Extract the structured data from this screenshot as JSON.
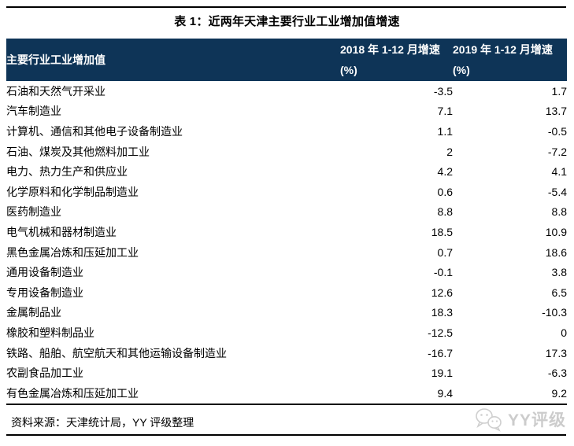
{
  "title": "表 1：近两年天津主要行业工业增加值增速",
  "table": {
    "columns": [
      "主要行业工业增加值",
      "2018 年 1-12 月增速(%)",
      "2019 年 1-12 月增速(%)"
    ],
    "rows": [
      {
        "industry": "石油和天然气开采业",
        "y2018": "-3.5",
        "y2019": "1.7"
      },
      {
        "industry": "汽车制造业",
        "y2018": "7.1",
        "y2019": "13.7"
      },
      {
        "industry": "计算机、通信和其他电子设备制造业",
        "y2018": "1.1",
        "y2019": "-0.5"
      },
      {
        "industry": "石油、煤炭及其他燃料加工业",
        "y2018": "2",
        "y2019": "-7.2"
      },
      {
        "industry": "电力、热力生产和供应业",
        "y2018": "4.2",
        "y2019": "4.1"
      },
      {
        "industry": "化学原料和化学制品制造业",
        "y2018": "0.6",
        "y2019": "-5.4"
      },
      {
        "industry": "医药制造业",
        "y2018": "8.8",
        "y2019": "8.8"
      },
      {
        "industry": "电气机械和器材制造业",
        "y2018": "18.5",
        "y2019": "10.9"
      },
      {
        "industry": "黑色金属冶炼和压延加工业",
        "y2018": "0.7",
        "y2019": "18.6"
      },
      {
        "industry": "通用设备制造业",
        "y2018": "-0.1",
        "y2019": "3.8"
      },
      {
        "industry": "专用设备制造业",
        "y2018": "12.6",
        "y2019": "6.5"
      },
      {
        "industry": "金属制品业",
        "y2018": "18.3",
        "y2019": "-10.3"
      },
      {
        "industry": "橡胶和塑料制品业",
        "y2018": "-12.5",
        "y2019": "0"
      },
      {
        "industry": "铁路、船舶、航空航天和其他运输设备制造业",
        "y2018": "-16.7",
        "y2019": "17.3"
      },
      {
        "industry": "农副食品加工业",
        "y2018": "19.1",
        "y2019": "-6.3"
      },
      {
        "industry": "有色金属冶炼和压延加工业",
        "y2018": "9.4",
        "y2019": "9.2"
      }
    ]
  },
  "chart_data": {
    "type": "table",
    "title": "表 1：近两年天津主要行业工业增加值增速",
    "categories": [
      "石油和天然气开采业",
      "汽车制造业",
      "计算机、通信和其他电子设备制造业",
      "石油、煤炭及其他燃料加工业",
      "电力、热力生产和供应业",
      "化学原料和化学制品制造业",
      "医药制造业",
      "电气机械和器材制造业",
      "黑色金属冶炼和压延加工业",
      "通用设备制造业",
      "专用设备制造业",
      "金属制品业",
      "橡胶和塑料制品业",
      "铁路、船舶、航空航天和其他运输设备制造业",
      "农副食品加工业",
      "有色金属冶炼和压延加工业"
    ],
    "series": [
      {
        "name": "2018 年 1-12 月增速(%)",
        "values": [
          -3.5,
          7.1,
          1.1,
          2,
          4.2,
          0.6,
          8.8,
          18.5,
          0.7,
          -0.1,
          12.6,
          18.3,
          -12.5,
          -16.7,
          19.1,
          9.4
        ]
      },
      {
        "name": "2019 年 1-12 月增速(%)",
        "values": [
          1.7,
          13.7,
          -0.5,
          -7.2,
          4.1,
          -5.4,
          8.8,
          10.9,
          18.6,
          3.8,
          6.5,
          -10.3,
          0,
          17.3,
          -6.3,
          9.2
        ]
      }
    ]
  },
  "footer": {
    "source": "资料来源：天津统计局，YY 评级整理",
    "watermark": "YY评级"
  },
  "colors": {
    "header_bg": "#0e3457",
    "header_text": "#ffffff",
    "rule": "#000000",
    "watermark": "#cccccc"
  }
}
